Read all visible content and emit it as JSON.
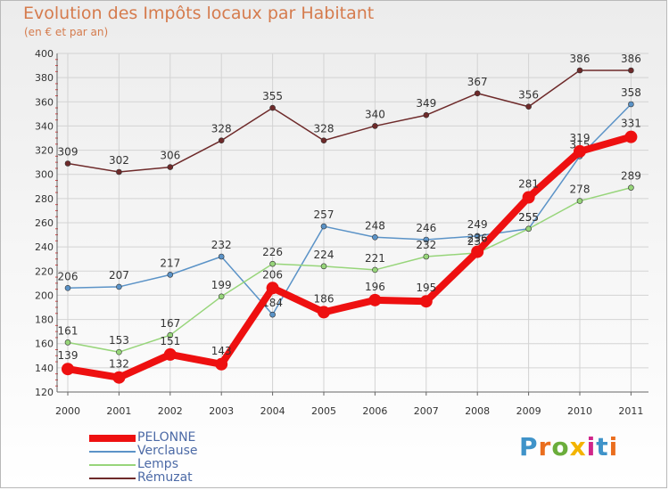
{
  "header": {
    "title": "Evolution des Impôts locaux par Habitant",
    "subtitle": "(en € et par an)"
  },
  "branding": {
    "letters": [
      "P",
      "r",
      "o",
      "x",
      "i",
      "t",
      "i"
    ],
    "colors": [
      "#3f93c9",
      "#ea6e1e",
      "#6bad3b",
      "#f3b400",
      "#d1268a",
      "#3f93c9",
      "#ea6e1e"
    ]
  },
  "chart_data": {
    "type": "line",
    "title": "Evolution des Impôts locaux par Habitant",
    "subtitle": "(en € et par an)",
    "xlabel": "",
    "ylabel": "",
    "categories": [
      "2000",
      "2001",
      "2002",
      "2003",
      "2004",
      "2005",
      "2006",
      "2007",
      "2008",
      "2009",
      "2010",
      "2011"
    ],
    "ylim": [
      120,
      400
    ],
    "yticks": [
      120,
      140,
      160,
      180,
      200,
      220,
      240,
      260,
      280,
      300,
      320,
      340,
      360,
      380,
      400
    ],
    "grid": true,
    "legend_position": "bottom-left",
    "series": [
      {
        "name": "Rémuzat",
        "color": "#6e2a2a",
        "values": [
          309,
          302,
          306,
          328,
          355,
          328,
          340,
          349,
          367,
          356,
          386,
          386
        ],
        "labels": [
          "309",
          "302",
          "306",
          "328",
          "355",
          "328",
          "340",
          "349",
          "367",
          "356",
          "386",
          "386"
        ]
      },
      {
        "name": "Verclause",
        "color": "#5b93c7",
        "values": [
          206,
          207,
          217,
          232,
          184,
          257,
          248,
          246,
          249,
          255,
          315,
          358
        ],
        "labels": [
          "206",
          "207",
          "217",
          "232",
          "184",
          "257",
          "248",
          "246",
          "249",
          "255",
          "315",
          "358"
        ]
      },
      {
        "name": "Lemps",
        "color": "#97d57a",
        "values": [
          161,
          153,
          167,
          199,
          226,
          224,
          221,
          232,
          235,
          255,
          278,
          289
        ],
        "labels": [
          "161",
          "153",
          "167",
          "199",
          "226",
          "224",
          "221",
          "232",
          "235",
          "255",
          "278",
          "289"
        ]
      },
      {
        "name": "PELONNE",
        "color": "#ee1010",
        "values": [
          139,
          132,
          151,
          143,
          206,
          186,
          196,
          195,
          236,
          281,
          319,
          331
        ],
        "labels": [
          "139",
          "132",
          "151",
          "143",
          "206",
          "186",
          "196",
          "195",
          "236",
          "281",
          "319",
          "331"
        ]
      }
    ]
  }
}
